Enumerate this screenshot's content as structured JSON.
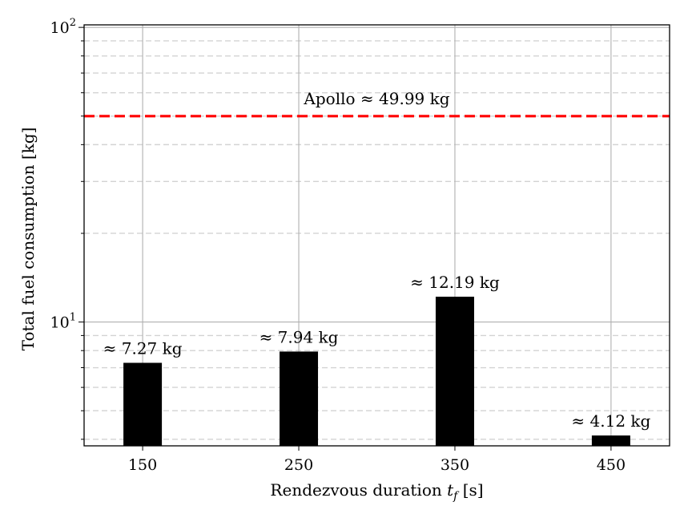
{
  "chart_data": {
    "type": "bar",
    "categories": [
      "150",
      "250",
      "350",
      "450"
    ],
    "values": [
      7.27,
      7.94,
      12.19,
      4.12
    ],
    "data_labels": [
      "≈ 7.27 kg",
      "≈ 7.94 kg",
      "≈ 12.19 kg",
      "≈ 4.12 kg"
    ],
    "xlabel_main": "Rendezvous duration ",
    "xlabel_var": "t",
    "xlabel_sub": "f",
    "xlabel_unit": " [s]",
    "ylabel": "Total fuel consumption [kg]",
    "y_scale": "log",
    "ylim": [
      3.8,
      102
    ],
    "y_major_ticks": [
      {
        "value": 10,
        "base": "10",
        "exp": "1"
      },
      {
        "value": 100,
        "base": "10",
        "exp": "2"
      }
    ],
    "y_minor_ticks": [
      4,
      5,
      6,
      7,
      8,
      9,
      20,
      30,
      40,
      50,
      60,
      70,
      80,
      90
    ],
    "reference_line": {
      "value": 49.99,
      "label": "Apollo ≈ 49.99 kg",
      "color": "#ff0000",
      "style": "dashed"
    },
    "bar_color": "#000000",
    "grid": {
      "x": "solid",
      "y_major": "solid",
      "y_minor": "dashed"
    },
    "legend": "none"
  }
}
